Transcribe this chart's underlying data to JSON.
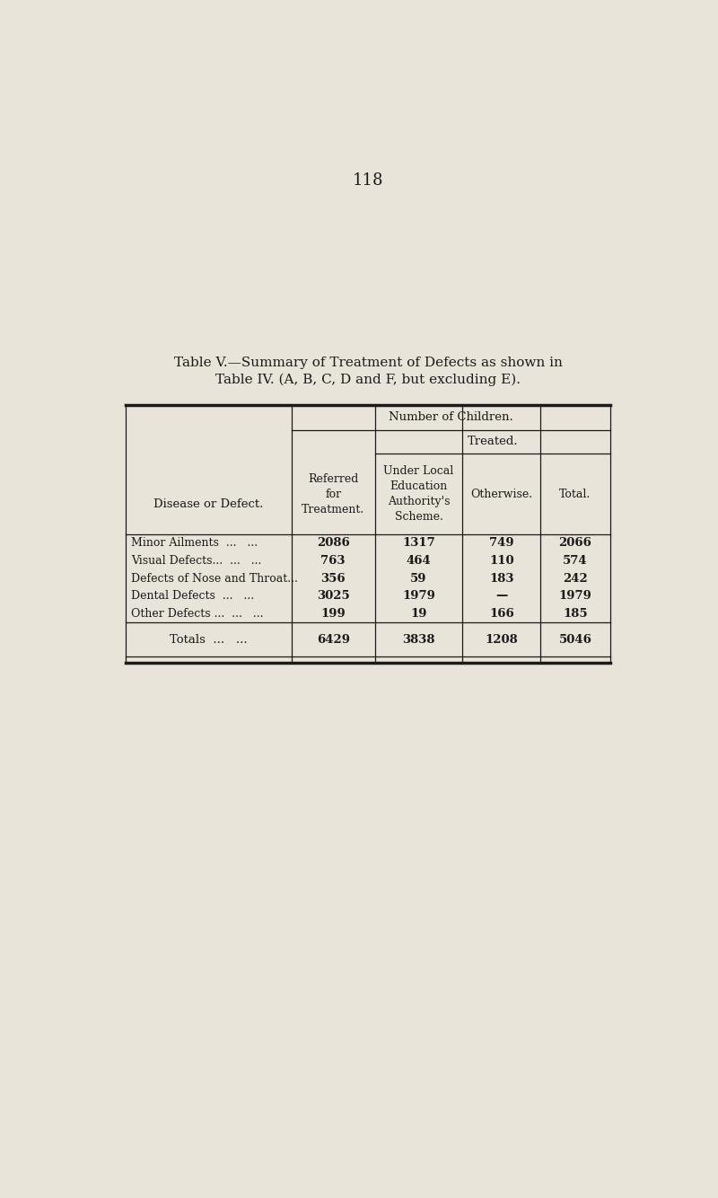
{
  "page_number": "118",
  "title_line1": "Table V.—Summary of Treatment of Defects as shown in",
  "title_line2": "Table IV. (A, B, C, D and F, but excluding E).",
  "background_color": "#e8e4da",
  "text_color": "#1a1a1a",
  "col_header_row1": "Number of Children.",
  "col_header_treated": "Treated.",
  "col_headers": [
    "Referred\nfor\nTreatment.",
    "Under Local\nEducation\nAuthority's\nScheme.",
    "Otherwise.",
    "Total."
  ],
  "row_header": "Disease or Defect.",
  "rows": [
    {
      "disease": "Minor Ailments",
      "dots": "...   ...",
      "referred": "2086",
      "under_local": "1317",
      "otherwise": "749",
      "total": "2066"
    },
    {
      "disease": "Visual Defects...",
      "dots": "...   ...",
      "referred": "763",
      "under_local": "464",
      "otherwise": "110",
      "total": "574"
    },
    {
      "disease": "Defects of Nose and Throat...",
      "dots": "",
      "referred": "356",
      "under_local": "59",
      "otherwise": "183",
      "total": "242"
    },
    {
      "disease": "Dental Defects",
      "dots": "...   ...",
      "referred": "3025",
      "under_local": "1979",
      "otherwise": "—",
      "total": "1979"
    },
    {
      "disease": "Other Defects ...",
      "dots": "...   ...",
      "referred": "199",
      "under_local": "19",
      "otherwise": "166",
      "total": "185"
    }
  ],
  "totals_row": {
    "label": "Totals",
    "dots": "...   ...",
    "referred": "6429",
    "under_local": "3838",
    "otherwise": "1208",
    "total": "5046"
  }
}
